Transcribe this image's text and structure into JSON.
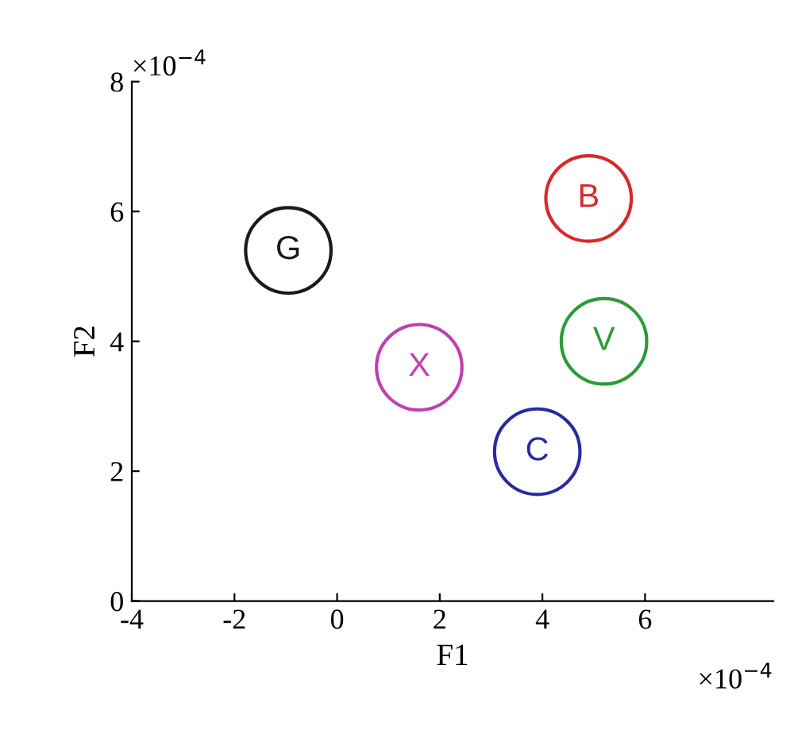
{
  "chart_data": {
    "type": "scatter",
    "xlabel": "F1",
    "ylabel": "F2",
    "xlim": [
      -4,
      8.5
    ],
    "xticks": [
      -4,
      -2,
      0,
      2,
      4,
      6
    ],
    "ylim": [
      0,
      8
    ],
    "yticks": [
      0,
      2,
      4,
      6,
      8
    ],
    "grid": false,
    "legend": false,
    "marker": "circle",
    "annotations": [
      "×10$^{−4}$",
      "×10$^{−4}$"
    ],
    "series": [
      {
        "name": "G",
        "color": "#1a1a1a",
        "x": [
          -0.95
        ],
        "values": [
          5.4
        ]
      },
      {
        "name": "B",
        "color": "#d62a2a",
        "x": [
          4.9
        ],
        "values": [
          6.2
        ]
      },
      {
        "name": "V",
        "color": "#2e9a3a",
        "x": [
          5.2
        ],
        "values": [
          4.0
        ]
      },
      {
        "name": "X",
        "color": "#c040b0",
        "x": [
          1.6
        ],
        "values": [
          3.6
        ]
      },
      {
        "name": "C",
        "color": "#2a2aa0",
        "x": [
          3.9
        ],
        "values": [
          2.3
        ]
      }
    ]
  }
}
